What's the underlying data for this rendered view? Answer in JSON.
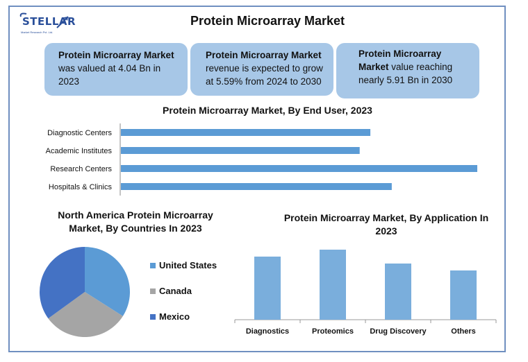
{
  "header": {
    "logo_text": "STELLAR",
    "logo_subtext": "Market Research Pvt. Ltd.",
    "title": "Protein Microarray Market"
  },
  "cards": [
    {
      "bold": "Protein Microarray Market",
      "rest": " was valued at 4.04 Bn in 2023"
    },
    {
      "bold": "Protein Microarray Market",
      "rest": " revenue is expected to grow at 5.59% from 2024 to 2030"
    },
    {
      "bold": "Protein Microarray Market",
      "rest": " value reaching nearly 5.91 Bn in 2030"
    }
  ],
  "colors": {
    "bar_blue": "#5b9bd5",
    "app_bar": "#7aaedc",
    "card_bg": "#a7c7e7",
    "pie_us": "#5b9bd5",
    "pie_canada": "#a5a5a5",
    "pie_mexico": "#4472c4"
  },
  "chart_data": [
    {
      "type": "bar",
      "orientation": "horizontal",
      "title": "Protein Microarray Market, By End User, 2023",
      "categories": [
        "Diagnostic Centers",
        "Academic Institutes",
        "Research Centers",
        "Hospitals & Clinics"
      ],
      "values": [
        70,
        67,
        100,
        76
      ],
      "xlabel": "",
      "ylabel": "",
      "xlim": [
        0,
        100
      ],
      "grid": false
    },
    {
      "type": "pie",
      "title": "North America Protein Microarray Market, By Countries In 2023",
      "labels": [
        "United States",
        "Canada",
        "Mexico"
      ],
      "values": [
        34,
        31,
        35
      ],
      "legend": "right"
    },
    {
      "type": "bar",
      "title": "Protein Microarray Market, By Application In 2023",
      "categories": [
        "Diagnostics",
        "Proteomics",
        "Drug Discovery",
        "Others"
      ],
      "values": [
        91,
        101,
        81,
        71
      ],
      "ylim": [
        0,
        110
      ],
      "grid": false
    }
  ]
}
